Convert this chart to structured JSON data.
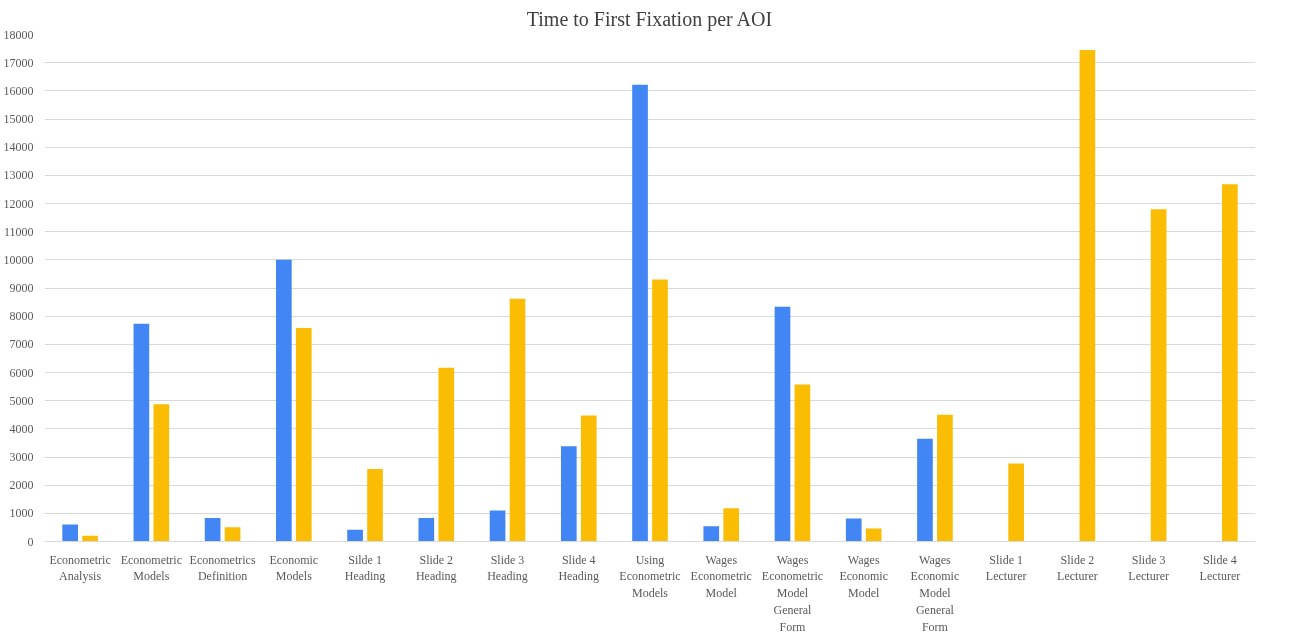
{
  "chart_data": {
    "type": "bar",
    "title": "Time to First Fixation per AOI",
    "categories": [
      "Econometric\nAnalysis",
      "Econometric\nModels",
      "Econometrics\nDefinition",
      "Economic\nModels",
      "Silde 1\nHeading",
      "Slide 2\nHeading",
      "Slide 3\nHeading",
      "Slide 4\nHeading",
      "Using\nEconometric\nModels",
      "Wages\nEconometric\nModel",
      "Wages\nEconometric\nModel\nGeneral\nForm",
      "Wages\nEconomic\nModel",
      "Wages\nEconomic\nModel\nGeneral\nForm",
      "Slide 1\nLecturer",
      "Slide 2\nLecturer",
      "Slide 3\nLecturer",
      "Slide 4\nLecturer"
    ],
    "series": [
      {
        "color": "#4285f4",
        "values": [
          600,
          7730,
          830,
          10000,
          420,
          830,
          1100,
          3380,
          16220,
          540,
          8330,
          820,
          3650,
          null,
          null,
          null,
          null
        ]
      },
      {
        "color": "#fbbc04",
        "values": [
          200,
          4870,
          510,
          7580,
          2570,
          6170,
          8620,
          4470,
          9300,
          1180,
          5570,
          460,
          4500,
          2770,
          17450,
          11800,
          12680
        ]
      }
    ],
    "ylim": [
      0,
      18000
    ],
    "yticks": [
      0,
      1000,
      2000,
      3000,
      4000,
      5000,
      6000,
      7000,
      8000,
      9000,
      10000,
      11000,
      12000,
      13000,
      14000,
      15000,
      16000,
      17000,
      18000
    ],
    "grid": "y"
  }
}
